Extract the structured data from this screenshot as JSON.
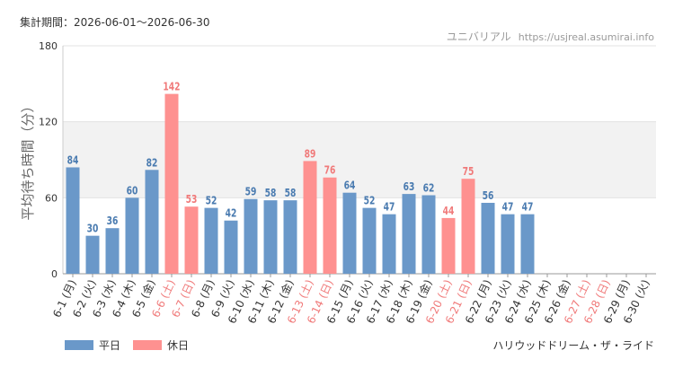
{
  "header": {
    "period": "集計期間：2026-06-01～2026-06-30",
    "credit_site": "ユニバリアル",
    "credit_url": "https://usjreal.asumirai.info"
  },
  "attraction": "ハリウッドドリーム・ザ・ライド",
  "colors": {
    "weekday": "#6a98c9",
    "holiday": "#fe9190",
    "holiday_text": "#f07a7a",
    "weekday_label": "#4a7bb0",
    "band": "#f2f2f2",
    "grid": "#e3e3e3"
  },
  "legend": [
    {
      "label": "平日",
      "kind": "weekday"
    },
    {
      "label": "休日",
      "kind": "holiday"
    }
  ],
  "chart_data": {
    "type": "bar",
    "title": "",
    "xlabel": "",
    "ylabel": "平均待ち時間（分）",
    "ylim": [
      0,
      180
    ],
    "yticks": [
      0,
      60,
      120,
      180
    ],
    "shaded_band": [
      60,
      120
    ],
    "categories": [
      "6-1 (月)",
      "6-2 (火)",
      "6-3 (水)",
      "6-4 (木)",
      "6-5 (金)",
      "6-6 (土)",
      "6-7 (日)",
      "6-8 (月)",
      "6-9 (火)",
      "6-10 (水)",
      "6-11 (木)",
      "6-12 (金)",
      "6-13 (土)",
      "6-14 (日)",
      "6-15 (月)",
      "6-16 (火)",
      "6-17 (水)",
      "6-18 (木)",
      "6-19 (金)",
      "6-20 (土)",
      "6-21 (日)",
      "6-22 (月)",
      "6-23 (火)",
      "6-24 (水)",
      "6-25 (木)",
      "6-26 (金)",
      "6-27 (土)",
      "6-28 (日)",
      "6-29 (月)",
      "6-30 (火)"
    ],
    "day_kind": [
      "weekday",
      "weekday",
      "weekday",
      "weekday",
      "weekday",
      "holiday",
      "holiday",
      "weekday",
      "weekday",
      "weekday",
      "weekday",
      "weekday",
      "holiday",
      "holiday",
      "weekday",
      "weekday",
      "weekday",
      "weekday",
      "weekday",
      "holiday",
      "holiday",
      "weekday",
      "weekday",
      "weekday",
      "weekday",
      "weekday",
      "holiday",
      "holiday",
      "weekday",
      "weekday"
    ],
    "values": [
      84,
      30,
      36,
      60,
      82,
      142,
      53,
      52,
      42,
      59,
      58,
      58,
      89,
      76,
      64,
      52,
      47,
      63,
      62,
      44,
      75,
      56,
      47,
      47,
      null,
      null,
      null,
      null,
      null,
      null
    ]
  }
}
